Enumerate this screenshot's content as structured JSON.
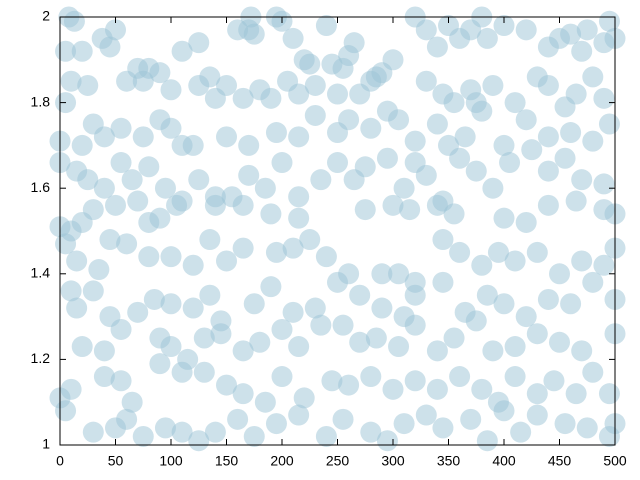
{
  "chart_data": {
    "type": "scatter",
    "color": "#9cc3d5",
    "xlim": [
      0,
      500
    ],
    "ylim": [
      1,
      2
    ],
    "xticks": [
      0,
      50,
      100,
      150,
      200,
      250,
      300,
      350,
      400,
      450,
      500
    ],
    "yticks": [
      1,
      1.2,
      1.4,
      1.6,
      1.8,
      2
    ],
    "x": [
      8,
      13,
      5,
      20,
      38,
      45,
      50,
      70,
      80,
      90,
      100,
      110,
      125,
      135,
      150,
      160,
      170,
      172,
      175,
      195,
      200,
      210,
      220,
      225,
      240,
      245,
      255,
      260,
      265,
      280,
      290,
      300,
      320,
      330,
      340,
      350,
      360,
      370,
      380,
      385,
      400,
      420,
      440,
      450,
      460,
      470,
      475,
      490,
      495,
      500,
      5,
      10,
      25,
      60,
      75,
      125,
      140,
      165,
      180,
      190,
      205,
      215,
      230,
      250,
      270,
      285,
      295,
      330,
      345,
      355,
      370,
      375,
      390,
      410,
      430,
      440,
      455,
      465,
      480,
      490,
      0,
      20,
      30,
      40,
      55,
      75,
      90,
      100,
      110,
      120,
      150,
      170,
      195,
      215,
      230,
      250,
      260,
      280,
      305,
      320,
      340,
      350,
      365,
      380,
      400,
      420,
      440,
      460,
      480,
      495,
      0,
      15,
      25,
      40,
      55,
      65,
      80,
      95,
      110,
      125,
      140,
      155,
      170,
      185,
      200,
      215,
      235,
      250,
      265,
      275,
      295,
      310,
      320,
      330,
      345,
      360,
      375,
      390,
      405,
      425,
      440,
      455,
      470,
      490,
      0,
      10,
      20,
      30,
      50,
      70,
      80,
      90,
      105,
      140,
      165,
      190,
      215,
      275,
      300,
      315,
      340,
      355,
      400,
      420,
      440,
      465,
      490,
      500,
      5,
      15,
      35,
      45,
      60,
      80,
      100,
      120,
      135,
      150,
      165,
      195,
      210,
      225,
      240,
      260,
      290,
      305,
      320,
      345,
      360,
      380,
      395,
      410,
      430,
      450,
      470,
      490,
      500,
      10,
      15,
      30,
      45,
      70,
      85,
      100,
      120,
      135,
      145,
      175,
      190,
      210,
      230,
      250,
      270,
      290,
      310,
      320,
      345,
      365,
      385,
      400,
      420,
      440,
      460,
      480,
      500,
      20,
      40,
      55,
      90,
      100,
      115,
      130,
      145,
      165,
      180,
      200,
      215,
      235,
      255,
      270,
      285,
      305,
      320,
      340,
      355,
      375,
      390,
      410,
      430,
      450,
      470,
      500,
      0,
      10,
      40,
      55,
      65,
      90,
      110,
      130,
      150,
      165,
      185,
      200,
      220,
      245,
      260,
      280,
      300,
      320,
      340,
      360,
      380,
      395,
      410,
      430,
      445,
      465,
      480,
      495,
      5,
      30,
      50,
      60,
      75,
      95,
      110,
      125,
      140,
      160,
      175,
      195,
      215,
      240,
      255,
      280,
      295,
      310,
      330,
      345,
      370,
      385,
      400,
      415,
      430,
      455,
      475,
      495,
      500
    ],
    "values": [
      2.0,
      1.99,
      1.92,
      1.92,
      1.95,
      1.93,
      1.97,
      1.88,
      1.88,
      1.87,
      1.83,
      1.92,
      1.94,
      1.86,
      1.84,
      1.97,
      1.97,
      2.0,
      1.96,
      2.0,
      1.99,
      1.95,
      1.9,
      1.89,
      1.98,
      1.89,
      1.88,
      1.91,
      1.94,
      1.85,
      1.87,
      1.9,
      2.0,
      1.97,
      1.93,
      1.98,
      1.95,
      1.97,
      2.0,
      1.95,
      1.98,
      1.97,
      1.93,
      1.95,
      1.96,
      1.92,
      1.97,
      1.94,
      1.99,
      1.95,
      1.8,
      1.85,
      1.84,
      1.85,
      1.85,
      1.84,
      1.81,
      1.81,
      1.83,
      1.81,
      1.85,
      1.82,
      1.84,
      1.82,
      1.82,
      1.86,
      1.78,
      1.85,
      1.82,
      1.8,
      1.83,
      1.8,
      1.84,
      1.8,
      1.86,
      1.84,
      1.79,
      1.82,
      1.86,
      1.81,
      1.71,
      1.7,
      1.75,
      1.72,
      1.74,
      1.72,
      1.76,
      1.74,
      1.7,
      1.7,
      1.72,
      1.7,
      1.73,
      1.72,
      1.77,
      1.73,
      1.76,
      1.74,
      1.76,
      1.71,
      1.75,
      1.7,
      1.72,
      1.78,
      1.7,
      1.76,
      1.72,
      1.73,
      1.71,
      1.75,
      1.66,
      1.64,
      1.62,
      1.6,
      1.66,
      1.62,
      1.65,
      1.6,
      1.57,
      1.62,
      1.58,
      1.58,
      1.63,
      1.6,
      1.66,
      1.58,
      1.62,
      1.66,
      1.62,
      1.65,
      1.67,
      1.6,
      1.66,
      1.63,
      1.57,
      1.67,
      1.64,
      1.6,
      1.66,
      1.69,
      1.64,
      1.67,
      1.62,
      1.61,
      1.51,
      1.5,
      1.52,
      1.55,
      1.56,
      1.57,
      1.52,
      1.53,
      1.56,
      1.56,
      1.56,
      1.54,
      1.53,
      1.55,
      1.56,
      1.55,
      1.56,
      1.54,
      1.53,
      1.52,
      1.56,
      1.57,
      1.55,
      1.54,
      1.47,
      1.43,
      1.41,
      1.48,
      1.47,
      1.44,
      1.44,
      1.42,
      1.48,
      1.43,
      1.46,
      1.45,
      1.46,
      1.48,
      1.44,
      1.4,
      1.4,
      1.4,
      1.38,
      1.48,
      1.45,
      1.42,
      1.45,
      1.43,
      1.45,
      1.4,
      1.43,
      1.42,
      1.46,
      1.36,
      1.32,
      1.36,
      1.3,
      1.31,
      1.34,
      1.33,
      1.32,
      1.35,
      1.29,
      1.33,
      1.37,
      1.31,
      1.32,
      1.38,
      1.35,
      1.32,
      1.3,
      1.35,
      1.38,
      1.31,
      1.35,
      1.33,
      1.3,
      1.34,
      1.33,
      1.38,
      1.34,
      1.23,
      1.22,
      1.27,
      1.25,
      1.23,
      1.2,
      1.25,
      1.26,
      1.22,
      1.24,
      1.27,
      1.23,
      1.28,
      1.28,
      1.24,
      1.25,
      1.23,
      1.28,
      1.22,
      1.25,
      1.29,
      1.22,
      1.23,
      1.26,
      1.24,
      1.22,
      1.26,
      1.11,
      1.13,
      1.16,
      1.15,
      1.1,
      1.19,
      1.17,
      1.17,
      1.14,
      1.12,
      1.1,
      1.16,
      1.11,
      1.15,
      1.14,
      1.16,
      1.13,
      1.15,
      1.13,
      1.16,
      1.13,
      1.1,
      1.16,
      1.12,
      1.15,
      1.12,
      1.17,
      1.12,
      1.08,
      1.03,
      1.04,
      1.06,
      1.02,
      1.04,
      1.03,
      1.01,
      1.03,
      1.06,
      1.02,
      1.05,
      1.07,
      1.02,
      1.06,
      1.03,
      1.01,
      1.05,
      1.07,
      1.04,
      1.06,
      1.01,
      1.08,
      1.03,
      1.07,
      1.05,
      1.04,
      1.02,
      1.05
    ]
  }
}
